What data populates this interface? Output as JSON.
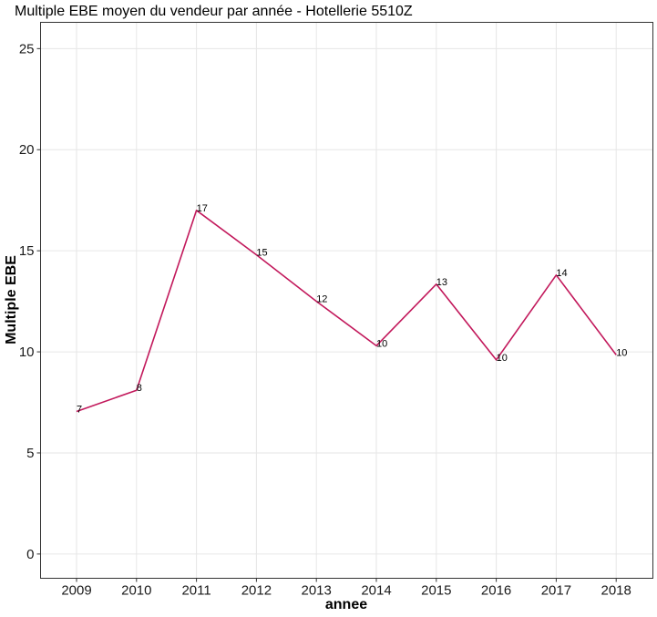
{
  "chart_data": {
    "type": "line",
    "title": "Multiple EBE moyen du vendeur par année - Hotellerie 5510Z",
    "xlabel": "annee",
    "ylabel": "Multiple EBE",
    "categories": [
      "2009",
      "2010",
      "2011",
      "2012",
      "2013",
      "2014",
      "2015",
      "2016",
      "2017",
      "2018"
    ],
    "series": [
      {
        "values": [
          7.05,
          8.1,
          17.0,
          14.8,
          12.5,
          10.3,
          13.35,
          9.6,
          13.8,
          9.85
        ],
        "labels": [
          "7",
          "8",
          "17",
          "15",
          "12",
          "10",
          "13",
          "10",
          "14",
          "10"
        ],
        "color": "#c2185b"
      }
    ],
    "ylim": [
      -1.2,
      26.3
    ],
    "yticks": [
      0,
      5,
      10,
      15,
      20,
      25
    ],
    "ytick_labels": [
      "0",
      "5",
      "10",
      "15",
      "20",
      "25"
    ],
    "grid": true,
    "legend": "none"
  }
}
